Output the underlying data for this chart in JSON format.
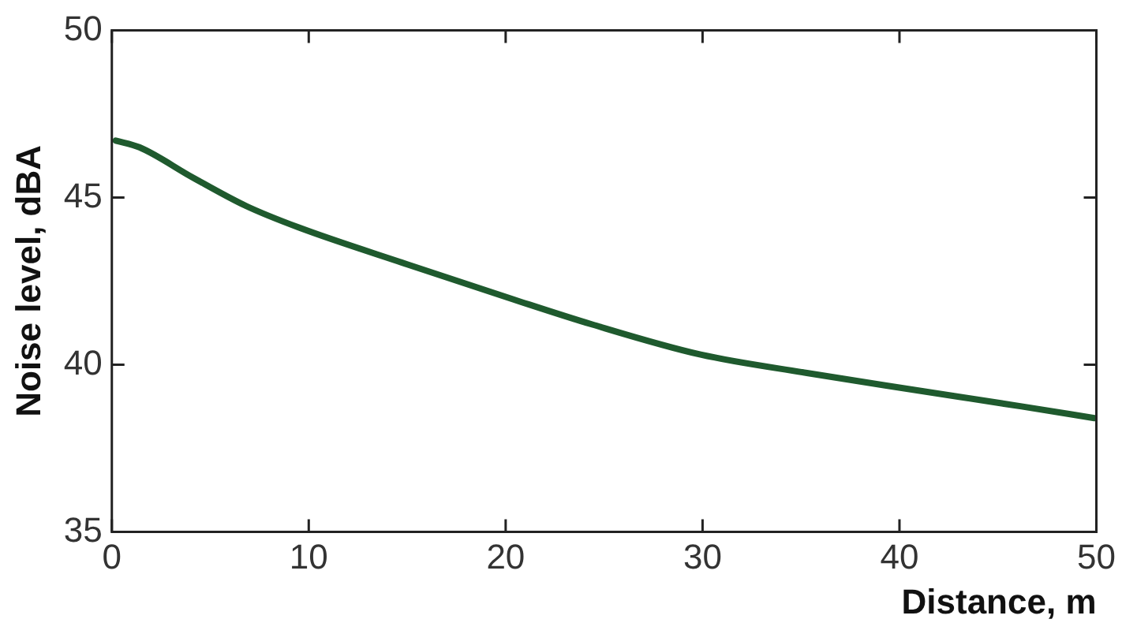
{
  "chart_data": {
    "type": "line",
    "xlabel": "Distance, m",
    "ylabel": "Noise level, dBA",
    "x": [
      0.2,
      1.4,
      4.1,
      6.8,
      9.5,
      15,
      20.4,
      24.4,
      29.9,
      35.3,
      40.7,
      46.2,
      49.9
    ],
    "series": [
      {
        "color": "#1f5a2e",
        "values": [
          46.7,
          46.5,
          45.6,
          44.75,
          44.1,
          43.0,
          41.95,
          41.2,
          40.3,
          39.75,
          39.25,
          38.75,
          38.4
        ]
      }
    ],
    "xlim": [
      0,
      50
    ],
    "xticks": [
      0,
      10,
      20,
      30,
      40,
      50
    ],
    "ylim": [
      35,
      50
    ],
    "yticks": [
      35,
      40,
      45,
      50
    ],
    "grid": false,
    "legend": false,
    "marker": "none",
    "line_style": "solid"
  }
}
